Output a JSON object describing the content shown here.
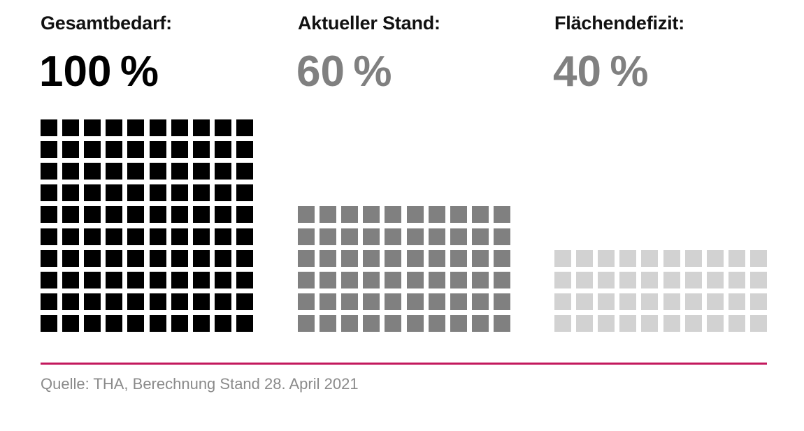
{
  "chart_data": {
    "type": "waffle",
    "grid": {
      "columns": 10,
      "rows_total": 10
    },
    "panels": [
      {
        "label": "Gesamtbedarf:",
        "value_text": "100 %",
        "value": 100,
        "color": "#000000",
        "text_color": "#000000"
      },
      {
        "label": "Aktueller Stand:",
        "value_text": "60 %",
        "value": 60,
        "color": "#808080",
        "text_color": "#808080"
      },
      {
        "label": "Flächendefizit:",
        "value_text": "40 %",
        "value": 40,
        "color": "#d2d2d2",
        "text_color": "#808080"
      }
    ],
    "accent_color": "#c3195d"
  },
  "footer": {
    "source": "Quelle: THA, Berechnung Stand 28. April 2021"
  }
}
